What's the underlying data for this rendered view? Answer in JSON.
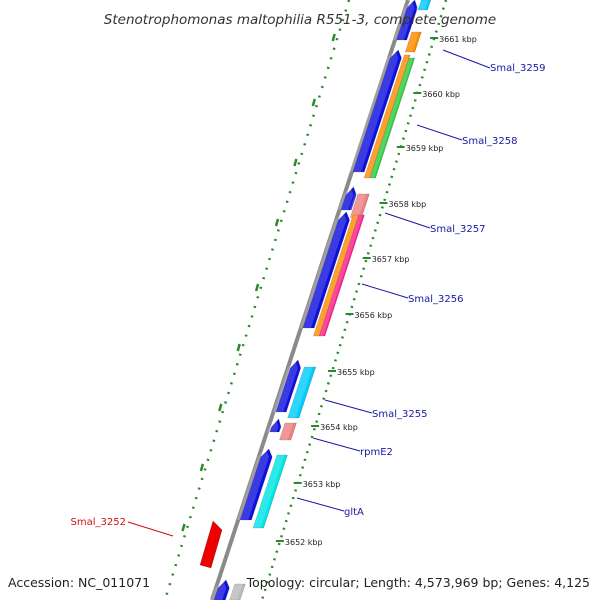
{
  "title": "Stenotrophomonas maltophilia R551-3, complete genome",
  "footer": {
    "accession": "Accession: NC_011071",
    "summary": "Topology: circular; Length: 4,573,969 bp; Genes: 4,125"
  },
  "colors": {
    "backbone": "#8a8a8a",
    "dotted_track": "#2a8a2a",
    "tick": "#2a8a2a",
    "forward_label": "#1a1aa0",
    "reverse_label": "#cc1111",
    "cds_blue": "#1010dd",
    "orange": "#ff8c00",
    "green": "#2ecc40",
    "pink": "#ff1f8e",
    "salmon": "#f08080",
    "cyan": "#00ccff",
    "aqua": "#00e5e5",
    "gray": "#bbbbbb",
    "red": "#ee0000"
  },
  "ticks": [
    {
      "label": "3652 kbp"
    },
    {
      "label": "3653 kbp"
    },
    {
      "label": "3654 kbp"
    },
    {
      "label": "3655 kbp"
    },
    {
      "label": "3656 kbp"
    },
    {
      "label": "3657 kbp"
    },
    {
      "label": "3658 kbp"
    },
    {
      "label": "3659 kbp"
    },
    {
      "label": "3660 kbp"
    },
    {
      "label": "3661 kbp"
    }
  ],
  "gene_labels": [
    {
      "text": "Smal_3259",
      "strand": "forward"
    },
    {
      "text": "Smal_3258",
      "strand": "forward"
    },
    {
      "text": "Smal_3257",
      "strand": "forward"
    },
    {
      "text": "Smal_3256",
      "strand": "forward"
    },
    {
      "text": "Smal_3255",
      "strand": "forward"
    },
    {
      "text": "rpmE2",
      "strand": "forward"
    },
    {
      "text": "gltA",
      "strand": "forward"
    },
    {
      "text": "Smal_3252",
      "strand": "reverse"
    }
  ]
}
